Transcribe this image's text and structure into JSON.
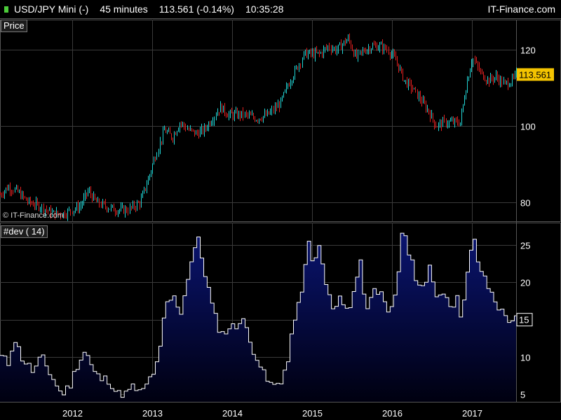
{
  "header": {
    "symbol": "USD/JPY Mini (-)",
    "timeframe": "45 minutes",
    "quote": "113.561 (-0.14%)",
    "time": "10:35:28",
    "brand": "IT-Finance.com"
  },
  "price_panel": {
    "label": "Price",
    "copyright": "© IT-Finance.com",
    "last_label": "113.561"
  },
  "dev_panel": {
    "label": "#dev ( 14)",
    "last_label": "15"
  },
  "colors": {
    "up": "#22d4d4",
    "down": "#e02020",
    "area_top": "#0a1470",
    "area_bottom": "#000010",
    "line": "#ffffff",
    "last_price_bg": "#f3c300"
  },
  "chart_data": [
    {
      "type": "line",
      "name": "price",
      "x_ticks": [
        "2012",
        "2013",
        "2014",
        "2015",
        "2016",
        "2017"
      ],
      "y_ticks": [
        80,
        100,
        120
      ],
      "ylim": [
        75,
        128
      ],
      "xlim": [
        2011.1,
        2017.55
      ],
      "x": [
        2011.1,
        2011.2,
        2011.3,
        2011.45,
        2011.6,
        2011.75,
        2011.9,
        2012.0,
        2012.1,
        2012.2,
        2012.3,
        2012.4,
        2012.55,
        2012.7,
        2012.85,
        2012.95,
        2013.05,
        2013.15,
        2013.25,
        2013.35,
        2013.45,
        2013.55,
        2013.65,
        2013.75,
        2013.85,
        2013.95,
        2014.05,
        2014.15,
        2014.3,
        2014.45,
        2014.6,
        2014.7,
        2014.8,
        2014.9,
        2015.0,
        2015.1,
        2015.2,
        2015.3,
        2015.45,
        2015.55,
        2015.65,
        2015.75,
        2015.85,
        2015.95,
        2016.05,
        2016.15,
        2016.25,
        2016.35,
        2016.45,
        2016.55,
        2016.65,
        2016.75,
        2016.85,
        2016.92,
        2017.0,
        2017.1,
        2017.2,
        2017.3,
        2017.4,
        2017.5,
        2017.55
      ],
      "y": [
        82,
        84,
        83,
        80,
        79,
        77,
        77,
        78,
        79,
        83,
        80,
        79,
        78,
        78,
        80,
        86,
        93,
        99,
        97,
        101,
        99,
        98,
        99,
        102,
        105,
        103,
        103,
        103,
        102,
        103,
        106,
        111,
        115,
        119,
        119,
        119,
        121,
        120,
        123,
        118,
        120,
        121,
        121,
        120,
        117,
        112,
        110,
        107,
        104,
        100,
        101,
        101,
        101,
        110,
        118,
        114,
        112,
        113,
        111,
        112,
        113.561
      ]
    },
    {
      "type": "area",
      "name": "#dev ( 14)",
      "x_ticks": [
        "2012",
        "2013",
        "2014",
        "2015",
        "2016",
        "2017"
      ],
      "y_ticks": [
        5,
        10,
        15,
        20,
        25
      ],
      "ylim": [
        4,
        28
      ],
      "xlim": [
        2011.1,
        2017.55
      ],
      "x": [
        2011.1,
        2011.2,
        2011.25,
        2011.35,
        2011.5,
        2011.6,
        2011.75,
        2011.85,
        2011.95,
        2012.05,
        2012.15,
        2012.25,
        2012.35,
        2012.45,
        2012.55,
        2012.65,
        2012.75,
        2012.85,
        2012.95,
        2013.05,
        2013.1,
        2013.15,
        2013.25,
        2013.35,
        2013.45,
        2013.55,
        2013.65,
        2013.75,
        2013.85,
        2013.95,
        2014.05,
        2014.1,
        2014.2,
        2014.3,
        2014.4,
        2014.5,
        2014.6,
        2014.7,
        2014.75,
        2014.85,
        2014.95,
        2015.0,
        2015.05,
        2015.15,
        2015.25,
        2015.35,
        2015.45,
        2015.6,
        2015.65,
        2015.75,
        2015.85,
        2015.95,
        2016.05,
        2016.1,
        2016.2,
        2016.3,
        2016.4,
        2016.45,
        2016.55,
        2016.65,
        2016.75,
        2016.8,
        2016.85,
        2016.95,
        2017.0,
        2017.05,
        2017.15,
        2017.25,
        2017.35,
        2017.45,
        2017.55
      ],
      "y": [
        10,
        9,
        13,
        10,
        8,
        10,
        7,
        5,
        6,
        9,
        11,
        8,
        7,
        7,
        5,
        5,
        6,
        5,
        7,
        9,
        12,
        17,
        18,
        16,
        22,
        26,
        21,
        16,
        13,
        14,
        14,
        16,
        12,
        10,
        7,
        6,
        7,
        10,
        15,
        18,
        27,
        20,
        26,
        20,
        16,
        18,
        16,
        24,
        15,
        20,
        18,
        15,
        20,
        27,
        24,
        20,
        19,
        22,
        18,
        19,
        16,
        19,
        15,
        23,
        26,
        23,
        20,
        18,
        16,
        15,
        15
      ]
    }
  ]
}
